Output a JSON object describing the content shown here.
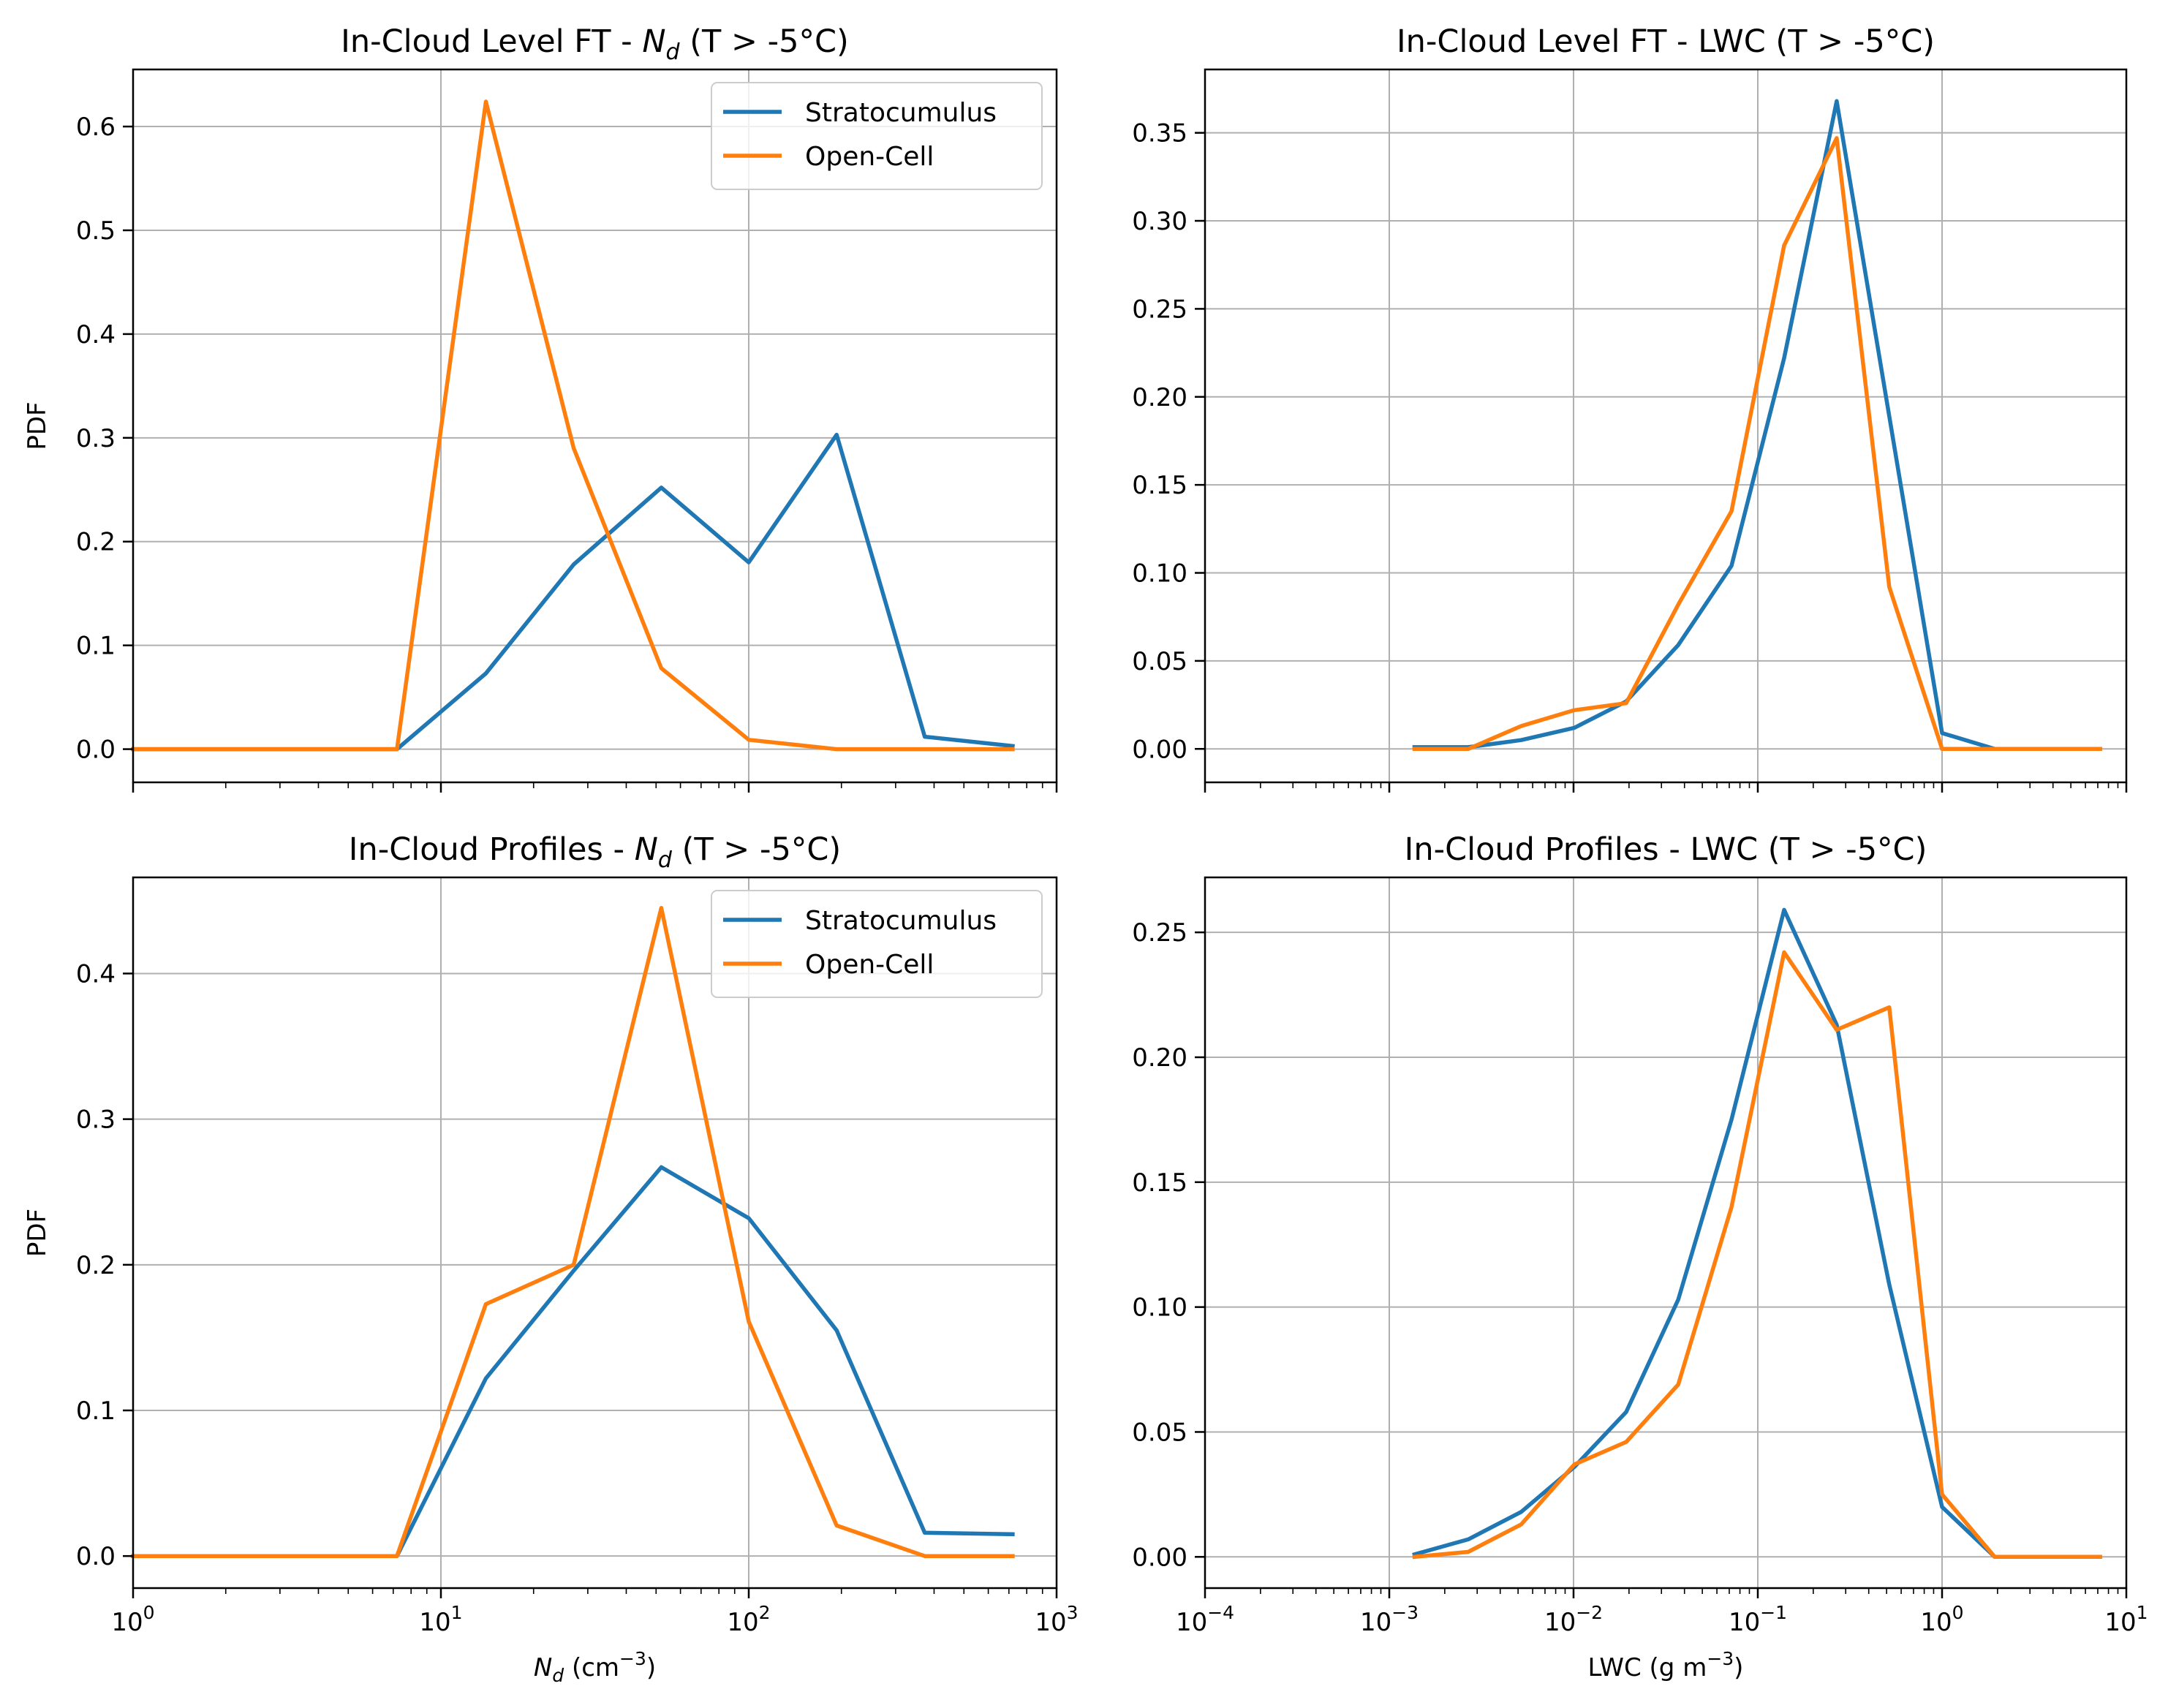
{
  "colors": {
    "stratocumulus": "#1f77b4",
    "open_cell": "#ff7f0e"
  },
  "chart_data": [
    {
      "type": "line",
      "title_prefix": "In-Cloud Level FT - ",
      "title_sym": "N",
      "title_sub": "d",
      "title_suffix": " (T > -5°C)",
      "ylabel": "PDF",
      "xlabel": "",
      "xscale": "log",
      "xlim": [
        1,
        1000
      ],
      "xticks": [
        1,
        10,
        100,
        1000
      ],
      "xtick_labels": [],
      "ylim": [
        -0.032,
        0.655
      ],
      "yticks": [
        0.0,
        0.1,
        0.2,
        0.3,
        0.4,
        0.5,
        0.6
      ],
      "ytick_labels": [
        "0.0",
        "0.1",
        "0.2",
        "0.3",
        "0.4",
        "0.5",
        "0.6"
      ],
      "grid": true,
      "legend": "top-right",
      "series": [
        {
          "name": "Stratocumulus",
          "color": "stratocumulus",
          "x": [
            1.0,
            1.4,
            2.7,
            5.2,
            7.2,
            14,
            27,
            52,
            100,
            193,
            373,
            720
          ],
          "y": [
            0.0,
            0.0,
            0.0,
            0.0,
            0.0,
            0.073,
            0.178,
            0.252,
            0.18,
            0.303,
            0.012,
            0.003
          ]
        },
        {
          "name": "Open-Cell",
          "color": "open_cell",
          "x": [
            1.0,
            1.4,
            2.7,
            5.2,
            7.2,
            14,
            27,
            52,
            100,
            193,
            373,
            720
          ],
          "y": [
            0.0,
            0.0,
            0.0,
            0.0,
            0.0,
            0.624,
            0.29,
            0.078,
            0.009,
            0.0,
            0.0,
            0.0
          ]
        }
      ]
    },
    {
      "type": "line",
      "title_prefix": "In-Cloud Level FT - LWC (T > -5°C)",
      "title_sym": "",
      "title_sub": "",
      "title_suffix": "",
      "ylabel": "",
      "xlabel": "",
      "xscale": "log",
      "xlim": [
        0.0001,
        10
      ],
      "xticks": [
        0.0001,
        0.001,
        0.01,
        0.1,
        1,
        10
      ],
      "xtick_labels": [],
      "ylim": [
        -0.019,
        0.386
      ],
      "yticks": [
        0.0,
        0.05,
        0.1,
        0.15,
        0.2,
        0.25,
        0.3,
        0.35
      ],
      "ytick_labels": [
        "0.00",
        "0.05",
        "0.10",
        "0.15",
        "0.20",
        "0.25",
        "0.30",
        "0.35"
      ],
      "grid": true,
      "legend": "",
      "series": [
        {
          "name": "Stratocumulus",
          "color": "stratocumulus",
          "x": [
            0.00137,
            0.00268,
            0.0052,
            0.0101,
            0.0193,
            0.037,
            0.072,
            0.139,
            0.268,
            0.517,
            1.0,
            1.93,
            3.73,
            7.2
          ],
          "y": [
            0.001,
            0.001,
            0.005,
            0.012,
            0.027,
            0.059,
            0.104,
            0.222,
            0.368,
            0.189,
            0.009,
            0.0,
            0.0,
            0.0
          ]
        },
        {
          "name": "Open-Cell",
          "color": "open_cell",
          "x": [
            0.00137,
            0.00268,
            0.0052,
            0.0101,
            0.0193,
            0.037,
            0.072,
            0.139,
            0.268,
            0.517,
            1.0,
            1.93,
            3.73,
            7.2
          ],
          "y": [
            0.0,
            0.0,
            0.013,
            0.022,
            0.026,
            0.082,
            0.135,
            0.286,
            0.347,
            0.092,
            0.0,
            0.0,
            0.0,
            0.0
          ]
        }
      ]
    },
    {
      "type": "line",
      "title_prefix": "In-Cloud Profiles - ",
      "title_sym": "N",
      "title_sub": "d",
      "title_suffix": " (T > -5°C)",
      "ylabel": "PDF",
      "xlabel_sym": "N",
      "xlabel_sub": "d",
      "xlabel_rest": " (cm",
      "xlabel_sup": "−3",
      "xlabel_end": ")",
      "xscale": "log",
      "xlim": [
        1,
        1000
      ],
      "xticks": [
        1,
        10,
        100,
        1000
      ],
      "xtick_base": "10",
      "xtick_exps": [
        "0",
        "1",
        "2",
        "3"
      ],
      "ylim": [
        -0.022,
        0.466
      ],
      "yticks": [
        0.0,
        0.1,
        0.2,
        0.3,
        0.4
      ],
      "ytick_labels": [
        "0.0",
        "0.1",
        "0.2",
        "0.3",
        "0.4"
      ],
      "grid": true,
      "legend": "top-right",
      "series": [
        {
          "name": "Stratocumulus",
          "color": "stratocumulus",
          "x": [
            1.0,
            1.4,
            2.7,
            5.2,
            7.2,
            14,
            27,
            52,
            100,
            193,
            373,
            720
          ],
          "y": [
            0.0,
            0.0,
            0.0,
            0.0,
            0.0,
            0.122,
            0.196,
            0.267,
            0.232,
            0.155,
            0.016,
            0.015
          ]
        },
        {
          "name": "Open-Cell",
          "color": "open_cell",
          "x": [
            1.0,
            1.4,
            2.7,
            5.2,
            7.2,
            14,
            27,
            52,
            100,
            193,
            373,
            720
          ],
          "y": [
            0.0,
            0.0,
            0.0,
            0.0,
            0.0,
            0.173,
            0.2,
            0.445,
            0.161,
            0.021,
            0.0,
            0.0
          ]
        }
      ]
    },
    {
      "type": "line",
      "title_prefix": "In-Cloud Profiles - LWC (T > -5°C)",
      "title_sym": "",
      "title_sub": "",
      "title_suffix": "",
      "ylabel": "",
      "xlabel_sym": "",
      "xlabel_sub": "",
      "xlabel_rest": "LWC (g m",
      "xlabel_sup": "−3",
      "xlabel_end": ")",
      "xscale": "log",
      "xlim": [
        0.0001,
        10
      ],
      "xticks": [
        0.0001,
        0.001,
        0.01,
        0.1,
        1,
        10
      ],
      "xtick_base": "10",
      "xtick_exps": [
        "−4",
        "−3",
        "−2",
        "−1",
        "0",
        "1"
      ],
      "ylim": [
        -0.0125,
        0.272
      ],
      "yticks": [
        0.0,
        0.05,
        0.1,
        0.15,
        0.2,
        0.25
      ],
      "ytick_labels": [
        "0.00",
        "0.05",
        "0.10",
        "0.15",
        "0.20",
        "0.25"
      ],
      "grid": true,
      "legend": "",
      "series": [
        {
          "name": "Stratocumulus",
          "color": "stratocumulus",
          "x": [
            0.00137,
            0.00268,
            0.0052,
            0.0101,
            0.0193,
            0.037,
            0.072,
            0.139,
            0.268,
            0.517,
            1.0,
            1.93,
            3.73,
            7.2
          ],
          "y": [
            0.001,
            0.007,
            0.018,
            0.036,
            0.058,
            0.103,
            0.175,
            0.259,
            0.213,
            0.109,
            0.02,
            0.0,
            0.0,
            0.0
          ]
        },
        {
          "name": "Open-Cell",
          "color": "open_cell",
          "x": [
            0.00137,
            0.00268,
            0.0052,
            0.0101,
            0.0193,
            0.037,
            0.072,
            0.139,
            0.268,
            0.517,
            1.0,
            1.93,
            3.73,
            7.2
          ],
          "y": [
            0.0,
            0.002,
            0.013,
            0.037,
            0.046,
            0.069,
            0.14,
            0.242,
            0.211,
            0.22,
            0.025,
            0.0,
            0.0,
            0.0
          ]
        }
      ]
    }
  ]
}
